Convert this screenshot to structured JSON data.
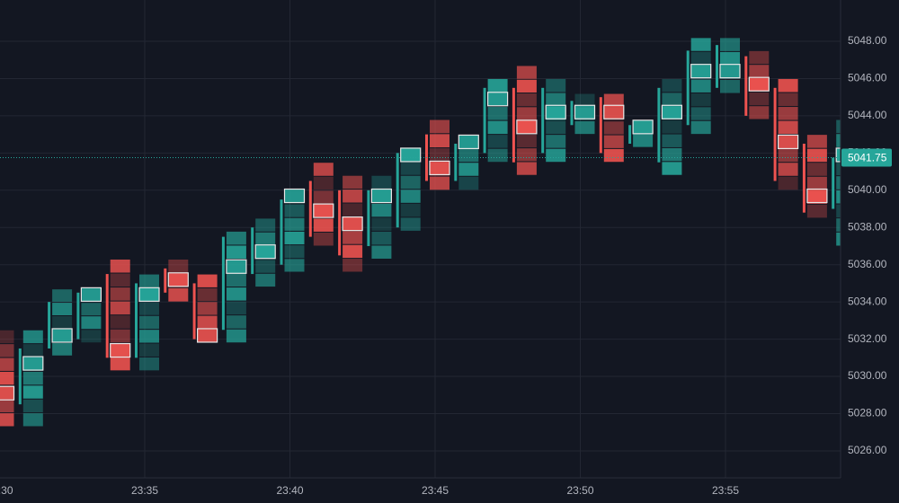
{
  "chart_data": {
    "type": "footprint",
    "categories": [
      "23:30",
      null,
      null,
      null,
      null,
      "23:35",
      null,
      null,
      null,
      null,
      "23:40",
      null,
      null,
      null,
      null,
      "23:45",
      null,
      null,
      null,
      null,
      "23:50",
      null,
      null,
      null,
      null,
      "23:55",
      null,
      null,
      null,
      null
    ],
    "open": [
      5031.5,
      5028.5,
      5031.5,
      5032,
      5035.5,
      5031,
      5035.8,
      5035,
      5032.5,
      5035.5,
      5036,
      5040.5,
      5040,
      5037,
      5038,
      5043,
      5040.5,
      5042,
      5045.5,
      5042,
      5043.5,
      5045,
      5042.5,
      5041.5,
      5043.5,
      5045.5,
      5047.2,
      5045.5,
      5042.5,
      5039
    ],
    "high": [
      5032.5,
      5032.5,
      5034.7,
      5034.7,
      5036.3,
      5035.5,
      5036.3,
      5035.5,
      5037.8,
      5038.5,
      5040.0,
      5041.5,
      5040.8,
      5040.8,
      5042.3,
      5043.8,
      5043.0,
      5046.0,
      5046.7,
      5046.0,
      5045.2,
      5045.2,
      5043.8,
      5046.0,
      5048.2,
      5048.2,
      5047.5,
      5046.0,
      5043.0,
      5043.8
    ],
    "low": [
      5027.3,
      5027.3,
      5031.1,
      5031.8,
      5030.3,
      5030.3,
      5034.0,
      5031.8,
      5031.8,
      5034.8,
      5035.6,
      5037.0,
      5035.6,
      5036.3,
      5037.8,
      5040.0,
      5040.0,
      5041.5,
      5040.8,
      5041.5,
      5043.0,
      5041.5,
      5042.3,
      5040.8,
      5043.0,
      5045.2,
      5043.8,
      5040.0,
      5038.5,
      5037.0
    ],
    "close": [
      5028.5,
      5031.5,
      5034,
      5034.5,
      5031,
      5035,
      5034.5,
      5032,
      5037.5,
      5038,
      5039.5,
      5037.5,
      5036.5,
      5040,
      5042,
      5040.5,
      5042.5,
      5045.5,
      5041.5,
      5045.5,
      5044.8,
      5042,
      5043.5,
      5045.5,
      5047.5,
      5047.8,
      5044,
      5040.5,
      5038.8,
      5041.75
    ],
    "poc": [
      5029.1,
      5030.7,
      5032.2,
      5034.4,
      5031.4,
      5034.4,
      5035.2,
      5032.2,
      5035.9,
      5036.7,
      5039.7,
      5038.9,
      5038.2,
      5039.7,
      5041.9,
      5041.2,
      5042.6,
      5044.9,
      5043.4,
      5044.2,
      5044.2,
      5044.2,
      5043.4,
      5044.2,
      5046.4,
      5046.4,
      5045.7,
      5042.6,
      5039.7,
      5041.9
    ],
    "up_color": "#26a69a",
    "down_color": "#ef5350",
    "last_price": 5041.75,
    "ylim": [
      5024.55,
      5050.22
    ],
    "yticks": [
      {
        "value": 5026,
        "label": "5026.00"
      },
      {
        "value": 5028,
        "label": "5028.00"
      },
      {
        "value": 5030,
        "label": "5030.00"
      },
      {
        "value": 5032,
        "label": "5032.00"
      },
      {
        "value": 5034,
        "label": "5034.00"
      },
      {
        "value": 5036,
        "label": "5036.00"
      },
      {
        "value": 5038,
        "label": "5038.00"
      },
      {
        "value": 5040,
        "label": "5040.00"
      },
      {
        "value": 5042,
        "label": "5042.00"
      },
      {
        "value": 5044,
        "label": "5044.00"
      },
      {
        "value": 5046,
        "label": "5046.00"
      },
      {
        "value": 5048,
        "label": "5048.00"
      }
    ],
    "grid": true
  }
}
